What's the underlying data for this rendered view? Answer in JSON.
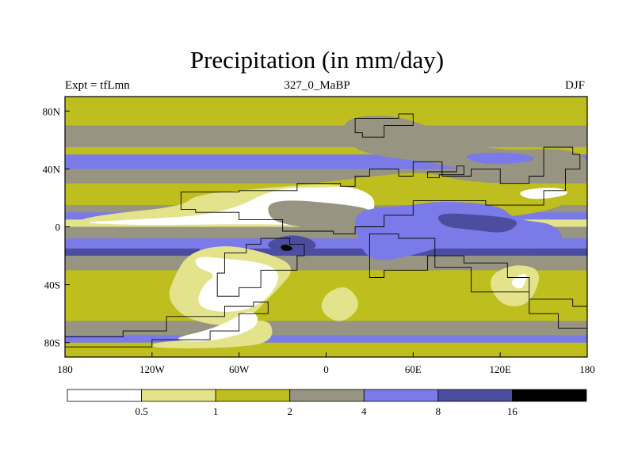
{
  "chart_data": {
    "type": "heatmap",
    "title": "Precipitation (in mm/day)",
    "subtitle": "327_0_MaBP",
    "left_label": "Expt = tfLmn",
    "right_label": "DJF",
    "x_ticks": [
      {
        "value": -180,
        "label": "180"
      },
      {
        "value": -120,
        "label": "120W"
      },
      {
        "value": -60,
        "label": "60W"
      },
      {
        "value": 0,
        "label": "0"
      },
      {
        "value": 60,
        "label": "60E"
      },
      {
        "value": 120,
        "label": "120E"
      },
      {
        "value": 180,
        "label": "180"
      }
    ],
    "y_ticks": [
      {
        "value": 80,
        "label": "80N"
      },
      {
        "value": 40,
        "label": "40N"
      },
      {
        "value": 0,
        "label": "0"
      },
      {
        "value": -40,
        "label": "40S"
      },
      {
        "value": -80,
        "label": "80S"
      }
    ],
    "xlim": [
      -180,
      180
    ],
    "ylim": [
      -90,
      90
    ],
    "colorbar": {
      "levels": [
        "0.5",
        "1",
        "2",
        "4",
        "8",
        "16"
      ],
      "colors": [
        "#ffffff",
        "#e3e38c",
        "#bebe1e",
        "#979582",
        "#7a7ae8",
        "#4d4da0",
        "#000000"
      ]
    },
    "zonal_bands": [
      {
        "lat_top": 90,
        "lat_bottom": 70,
        "level": 2
      },
      {
        "lat_top": 70,
        "lat_bottom": 55,
        "level": 3
      },
      {
        "lat_top": 55,
        "lat_bottom": 50,
        "level": 2
      },
      {
        "lat_top": 50,
        "lat_bottom": 40,
        "level": 4
      },
      {
        "lat_top": 40,
        "lat_bottom": 30,
        "level": 3
      },
      {
        "lat_top": 30,
        "lat_bottom": 15,
        "level": 2
      },
      {
        "lat_top": 15,
        "lat_bottom": 10,
        "level": 3
      },
      {
        "lat_top": 10,
        "lat_bottom": 5,
        "level": 4
      },
      {
        "lat_top": 5,
        "lat_bottom": 0,
        "level": 1
      },
      {
        "lat_top": 0,
        "lat_bottom": -8,
        "level": 3
      },
      {
        "lat_top": -8,
        "lat_bottom": -15,
        "level": 4
      },
      {
        "lat_top": -15,
        "lat_bottom": -20,
        "level": 5
      },
      {
        "lat_top": -20,
        "lat_bottom": -30,
        "level": 3
      },
      {
        "lat_top": -30,
        "lat_bottom": -65,
        "level": 2
      },
      {
        "lat_top": -65,
        "lat_bottom": -75,
        "level": 3
      },
      {
        "lat_top": -75,
        "lat_bottom": -80,
        "level": 4
      },
      {
        "lat_top": -80,
        "lat_bottom": -90,
        "level": 2
      }
    ],
    "patches": [
      {
        "level": 2,
        "points": [
          [
            -40,
            26
          ],
          [
            40,
            36
          ],
          [
            70,
            38
          ],
          [
            100,
            30
          ],
          [
            170,
            30
          ],
          [
            170,
            15
          ],
          [
            120,
            5
          ],
          [
            80,
            10
          ],
          [
            60,
            20
          ],
          [
            30,
            25
          ]
        ]
      },
      {
        "level": 3,
        "points": [
          [
            10,
            75
          ],
          [
            45,
            78
          ],
          [
            75,
            68
          ],
          [
            110,
            52
          ],
          [
            180,
            55
          ],
          [
            180,
            30
          ],
          [
            130,
            32
          ],
          [
            70,
            45
          ],
          [
            40,
            48
          ],
          [
            15,
            55
          ]
        ]
      },
      {
        "level": 4,
        "points": [
          [
            90,
            50
          ],
          [
            130,
            52
          ],
          [
            150,
            46
          ],
          [
            110,
            42
          ]
        ]
      },
      {
        "level": 1,
        "points": [
          [
            -90,
            22
          ],
          [
            -60,
            25
          ],
          [
            -30,
            28
          ],
          [
            10,
            30
          ],
          [
            30,
            22
          ],
          [
            35,
            10
          ],
          [
            -10,
            2
          ],
          [
            -90,
            4
          ],
          [
            -150,
            2
          ],
          [
            -175,
            4
          ],
          [
            -150,
            9
          ],
          [
            -100,
            14
          ]
        ]
      },
      {
        "level": 0,
        "points": [
          [
            -175,
            3
          ],
          [
            -130,
            5
          ],
          [
            -70,
            9
          ],
          [
            -35,
            27
          ],
          [
            -5,
            27
          ],
          [
            10,
            28
          ],
          [
            25,
            26
          ],
          [
            35,
            18
          ],
          [
            30,
            6
          ],
          [
            5,
            1
          ],
          [
            -60,
            2
          ],
          [
            -130,
            1
          ]
        ]
      },
      {
        "level": 0,
        "points": [
          [
            130,
            25
          ],
          [
            160,
            28
          ],
          [
            170,
            22
          ],
          [
            140,
            18
          ]
        ]
      },
      {
        "level": 3,
        "points": [
          [
            -40,
            20
          ],
          [
            20,
            15
          ],
          [
            35,
            10
          ],
          [
            40,
            0
          ],
          [
            20,
            -5
          ],
          [
            -20,
            0
          ],
          [
            -40,
            5
          ]
        ]
      },
      {
        "level": 4,
        "points": [
          [
            20,
            12
          ],
          [
            60,
            15
          ],
          [
            80,
            18
          ],
          [
            120,
            15
          ],
          [
            130,
            5
          ],
          [
            160,
            2
          ],
          [
            165,
            -15
          ],
          [
            120,
            -15
          ],
          [
            90,
            -10
          ],
          [
            60,
            -20
          ],
          [
            30,
            -25
          ],
          [
            20,
            -5
          ]
        ]
      },
      {
        "level": 5,
        "points": [
          [
            75,
            10
          ],
          [
            110,
            8
          ],
          [
            135,
            5
          ],
          [
            125,
            -5
          ],
          [
            100,
            -2
          ],
          [
            80,
            0
          ]
        ]
      },
      {
        "level": 5,
        "points": [
          [
            -40,
            -10
          ],
          [
            -25,
            -5
          ],
          [
            -10,
            -8
          ],
          [
            -5,
            -15
          ],
          [
            -25,
            -18
          ],
          [
            -40,
            -15
          ]
        ]
      },
      {
        "level": 6,
        "points": [
          [
            -32,
            -13
          ],
          [
            -26,
            -12
          ],
          [
            -22,
            -16
          ],
          [
            -30,
            -17
          ]
        ]
      },
      {
        "level": 4,
        "points": [
          [
            -90,
            -10
          ],
          [
            -60,
            -15
          ],
          [
            -40,
            -25
          ],
          [
            -55,
            -40
          ],
          [
            -75,
            -30
          ],
          [
            -85,
            -20
          ]
        ]
      },
      {
        "level": 1,
        "points": [
          [
            -95,
            -18
          ],
          [
            -70,
            -12
          ],
          [
            -40,
            -18
          ],
          [
            -20,
            -28
          ],
          [
            -35,
            -45
          ],
          [
            -60,
            -70
          ],
          [
            -95,
            -65
          ],
          [
            -110,
            -50
          ],
          [
            -105,
            -35
          ]
        ]
      },
      {
        "level": 0,
        "points": [
          [
            -90,
            -20
          ],
          [
            -70,
            -22
          ],
          [
            -40,
            -25
          ],
          [
            -30,
            -35
          ],
          [
            -45,
            -55
          ],
          [
            -70,
            -60
          ],
          [
            -90,
            -55
          ],
          [
            -85,
            -40
          ],
          [
            -75,
            -33
          ],
          [
            -90,
            -28
          ]
        ]
      },
      {
        "level": 1,
        "points": [
          [
            -120,
            -80
          ],
          [
            -90,
            -78
          ],
          [
            -40,
            -60
          ],
          [
            -35,
            -80
          ],
          [
            -70,
            -84
          ],
          [
            -120,
            -84
          ]
        ]
      },
      {
        "level": 0,
        "points": [
          [
            -110,
            -78
          ],
          [
            -75,
            -70
          ],
          [
            -50,
            -55
          ],
          [
            -45,
            -70
          ],
          [
            -80,
            -80
          ]
        ]
      },
      {
        "level": 1,
        "points": [
          [
            0,
            -45
          ],
          [
            15,
            -40
          ],
          [
            25,
            -55
          ],
          [
            10,
            -68
          ],
          [
            -5,
            -58
          ]
        ]
      },
      {
        "level": 1,
        "points": [
          [
            110,
            -35
          ],
          [
            130,
            -25
          ],
          [
            150,
            -30
          ],
          [
            140,
            -55
          ],
          [
            120,
            -55
          ]
        ]
      },
      {
        "level": 0,
        "points": [
          [
            125,
            -38
          ],
          [
            140,
            -30
          ],
          [
            135,
            -45
          ]
        ]
      }
    ],
    "outlines": [
      [
        [
          -100,
          24
        ],
        [
          -60,
          25
        ],
        [
          -20,
          30
        ],
        [
          10,
          28
        ],
        [
          20,
          35
        ],
        [
          30,
          40
        ],
        [
          50,
          35
        ],
        [
          60,
          45
        ],
        [
          80,
          35
        ],
        [
          100,
          40
        ],
        [
          120,
          30
        ],
        [
          140,
          35
        ],
        [
          150,
          55
        ],
        [
          170,
          50
        ],
        [
          175,
          40
        ],
        [
          165,
          25
        ],
        [
          150,
          15
        ],
        [
          110,
          18
        ],
        [
          60,
          8
        ],
        [
          40,
          0
        ],
        [
          20,
          -5
        ],
        [
          5,
          -3
        ],
        [
          -30,
          5
        ],
        [
          -60,
          10
        ],
        [
          -90,
          12
        ]
      ],
      [
        [
          20,
          75
        ],
        [
          50,
          78
        ],
        [
          60,
          70
        ],
        [
          40,
          62
        ],
        [
          25,
          65
        ]
      ],
      [
        [
          70,
          38
        ],
        [
          90,
          42
        ],
        [
          95,
          36
        ],
        [
          78,
          34
        ]
      ],
      [
        [
          -45,
          -8
        ],
        [
          -25,
          -12
        ],
        [
          -15,
          -20
        ],
        [
          -20,
          -30
        ],
        [
          -45,
          -42
        ],
        [
          -60,
          -48
        ],
        [
          -75,
          -32
        ],
        [
          -70,
          -18
        ],
        [
          -55,
          -12
        ]
      ],
      [
        [
          -185,
          -76
        ],
        [
          -140,
          -72
        ],
        [
          -110,
          -62
        ],
        [
          -70,
          -55
        ],
        [
          -50,
          -52
        ],
        [
          -40,
          -60
        ],
        [
          -60,
          -72
        ],
        [
          -80,
          -78
        ],
        [
          -120,
          -83
        ],
        [
          -180,
          -84
        ]
      ],
      [
        [
          30,
          -5
        ],
        [
          50,
          -8
        ],
        [
          75,
          -28
        ],
        [
          100,
          -45
        ],
        [
          140,
          -50
        ],
        [
          170,
          -55
        ],
        [
          180,
          -70
        ],
        [
          160,
          -60
        ],
        [
          140,
          -35
        ],
        [
          125,
          -25
        ],
        [
          95,
          -20
        ],
        [
          70,
          -30
        ],
        [
          40,
          -35
        ]
      ]
    ]
  }
}
